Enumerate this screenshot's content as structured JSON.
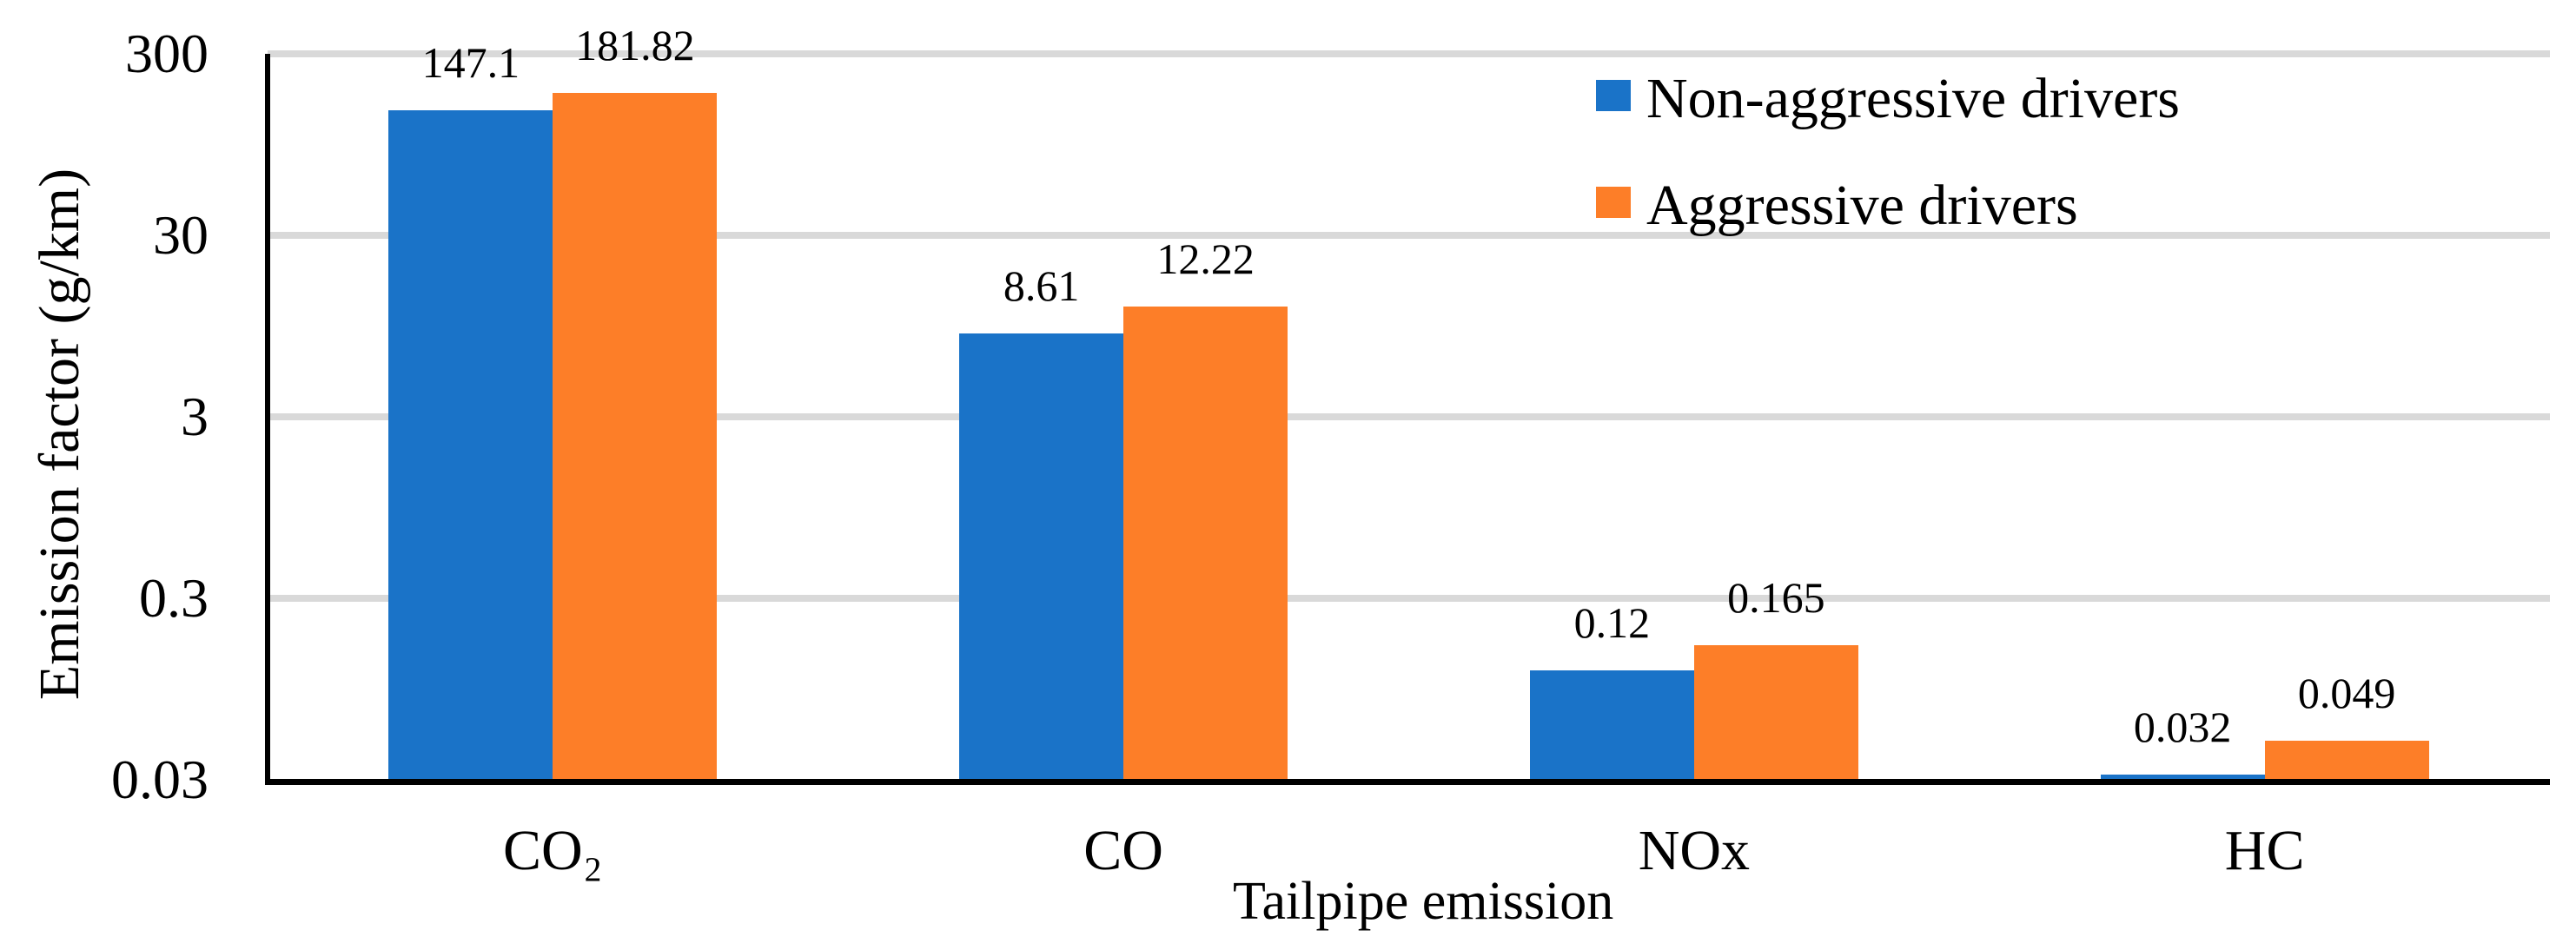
{
  "chart_data": {
    "type": "bar",
    "title": "",
    "xlabel": "Tailpipe emission",
    "ylabel": "Emission factor (g/km)",
    "y_scale": "log",
    "ylim": [
      0.03,
      300
    ],
    "yticks": [
      {
        "label": "300",
        "value": 300
      },
      {
        "label": "30",
        "value": 30
      },
      {
        "label": "3",
        "value": 3
      },
      {
        "label": "0.3",
        "value": 0.3
      },
      {
        "label": "0.03",
        "value": 0.03
      }
    ],
    "grid": "horizontal",
    "legend_position": "top-right-inside",
    "categories": [
      "CO₂",
      "CO",
      "NOx",
      "HC"
    ],
    "series": [
      {
        "name": "Non-aggressive drivers",
        "color": "#1A73C8",
        "values": [
          147.1,
          8.61,
          0.12,
          0.032
        ],
        "value_labels": [
          "147.1",
          "8.61",
          "0.12",
          "0.032"
        ]
      },
      {
        "name": "Aggressive drivers",
        "color": "#FD7E28",
        "values": [
          181.82,
          12.22,
          0.165,
          0.049
        ],
        "value_labels": [
          "181.82",
          "12.22",
          "0.165",
          "0.049"
        ]
      }
    ],
    "colors": {
      "gridline": "#D9D9D9",
      "axis": "#000000",
      "text": "#000000"
    }
  }
}
